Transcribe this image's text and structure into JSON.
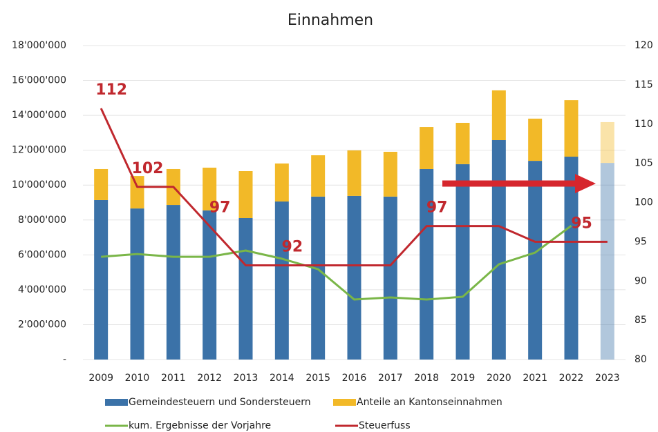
{
  "chart_data": {
    "type": "combo",
    "title": "Einnahmen",
    "categories": [
      "2009",
      "2010",
      "2011",
      "2012",
      "2013",
      "2014",
      "2015",
      "2016",
      "2017",
      "2018",
      "2019",
      "2020",
      "2021",
      "2022",
      "2023"
    ],
    "series": [
      {
        "name": "Gemeindesteuern und Sondersteuern",
        "type": "bar",
        "stack": true,
        "color": "#3b72a8",
        "values": [
          9140000,
          8660000,
          8860000,
          8550000,
          8110000,
          9060000,
          9340000,
          9380000,
          9340000,
          10920000,
          11200000,
          12580000,
          11390000,
          11630000,
          11270000
        ]
      },
      {
        "name": "Anteile an Kantonseinnahmen",
        "type": "bar",
        "stack": true,
        "color": "#f2b928",
        "values": [
          1780000,
          1860000,
          2060000,
          2450000,
          2690000,
          2180000,
          2370000,
          2610000,
          2570000,
          2410000,
          2370000,
          2850000,
          2420000,
          3240000,
          2340000
        ]
      },
      {
        "name": "kum. Ergebnisse der Vorjahre",
        "type": "line",
        "color": "#7ab648",
        "values": [
          5890000,
          6050000,
          5890000,
          5890000,
          6250000,
          5780000,
          5180000,
          3440000,
          3560000,
          3440000,
          3600000,
          5460000,
          6130000,
          7670000,
          null
        ]
      },
      {
        "name": "Steuerfuss",
        "type": "line",
        "axis": "y2",
        "color": "#c0282e",
        "values": [
          112,
          102,
          102,
          97,
          92,
          92,
          92,
          92,
          92,
          97,
          97,
          97,
          95,
          95,
          95
        ],
        "data_labels": [
          0,
          1,
          3,
          5,
          9,
          13
        ]
      }
    ],
    "faded": [
      14
    ],
    "ylim": [
      0,
      18000000
    ],
    "yticks": [
      {
        "value": 0,
        "label": "-"
      },
      {
        "value": 2000000,
        "label": "2'000'000"
      },
      {
        "value": 4000000,
        "label": "4'000'000"
      },
      {
        "value": 6000000,
        "label": "6'000'000"
      },
      {
        "value": 8000000,
        "label": "8'000'000"
      },
      {
        "value": 10000000,
        "label": "10'000'000"
      },
      {
        "value": 12000000,
        "label": "12'000'000"
      },
      {
        "value": 14000000,
        "label": "14'000'000"
      },
      {
        "value": 16000000,
        "label": "16'000'000"
      },
      {
        "value": 18000000,
        "label": "18'000'000"
      }
    ],
    "y2lim": [
      80,
      120
    ],
    "y2ticks": [
      80,
      85,
      90,
      95,
      100,
      105,
      110,
      115,
      120
    ],
    "grid": true
  }
}
